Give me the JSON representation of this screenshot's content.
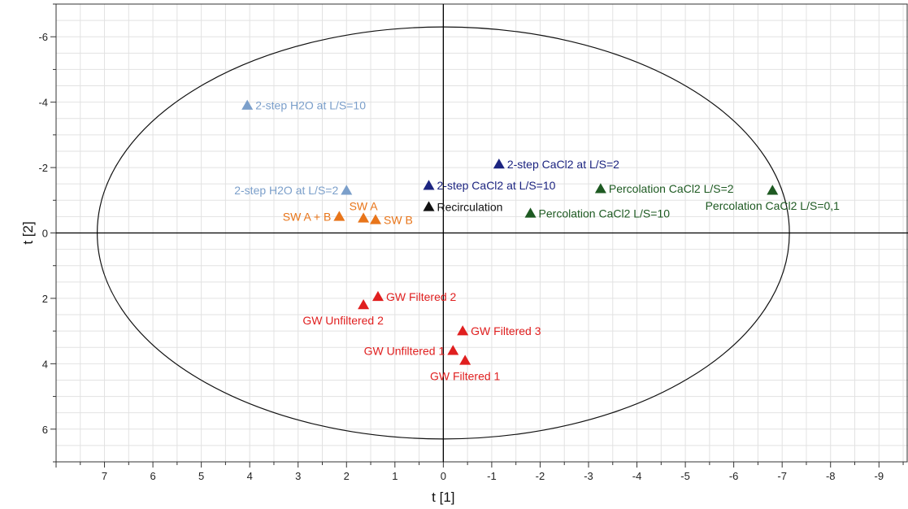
{
  "chart_data": {
    "type": "scatter",
    "xlabel": "t [1]",
    "ylabel": "t [2]",
    "x_axis_reversed": true,
    "y_axis_reversed": true,
    "xlim": [
      8.0,
      -9.6
    ],
    "ylim": [
      -7.0,
      7.0
    ],
    "x_ticks": [
      7,
      6,
      5,
      4,
      3,
      2,
      1,
      0,
      -1,
      -2,
      -3,
      -4,
      -5,
      -6,
      -7,
      -8,
      -9
    ],
    "y_ticks": [
      -6,
      -4,
      -2,
      0,
      2,
      4,
      6
    ],
    "grid": true,
    "ellipse": {
      "cx": 0,
      "cy": 0,
      "rx": 7.15,
      "ry": 6.3
    },
    "colors": {
      "light_blue": "#7b9fca",
      "dark_blue": "#1c2480",
      "black": "#111111",
      "orange": "#e8751a",
      "green": "#1e5a22",
      "red": "#e01f1f"
    },
    "points": [
      {
        "label": "2-step H2O at L/S=10",
        "x": 4.05,
        "y": -3.9,
        "color": "light_blue",
        "anchor": "right"
      },
      {
        "label": "2-step H2O at L/S=2",
        "x": 2.0,
        "y": -1.3,
        "color": "light_blue",
        "anchor": "left"
      },
      {
        "label": "2-step CaCl2 at L/S=2",
        "x": -1.15,
        "y": -2.1,
        "color": "dark_blue",
        "anchor": "right"
      },
      {
        "label": "2-step CaCl2 at L/S=10",
        "x": 0.3,
        "y": -1.45,
        "color": "dark_blue",
        "anchor": "right"
      },
      {
        "label": "Recirculation",
        "x": 0.3,
        "y": -0.8,
        "color": "black",
        "anchor": "right"
      },
      {
        "label": "SW A",
        "x": 1.65,
        "y": -0.45,
        "color": "orange",
        "anchor": "above"
      },
      {
        "label": "SW A + B",
        "x": 2.15,
        "y": -0.5,
        "color": "orange",
        "anchor": "left"
      },
      {
        "label": "SW B",
        "x": 1.4,
        "y": -0.4,
        "color": "orange",
        "anchor": "right"
      },
      {
        "label": "Percolation CaCl2 L/S=2",
        "x": -3.25,
        "y": -1.35,
        "color": "green",
        "anchor": "right"
      },
      {
        "label": "Percolation CaCl2 L/S=10",
        "x": -1.8,
        "y": -0.6,
        "color": "green",
        "anchor": "right"
      },
      {
        "label": "Percolation CaCl2 L/S=0,1",
        "x": -6.8,
        "y": -1.3,
        "color": "green",
        "anchor": "below"
      },
      {
        "label": "GW Filtered 2",
        "x": 1.35,
        "y": 1.95,
        "color": "red",
        "anchor": "right"
      },
      {
        "label": "GW Unfiltered 2",
        "x": 1.65,
        "y": 2.2,
        "color": "red",
        "anchor": "below-left"
      },
      {
        "label": "GW Filtered 3",
        "x": -0.4,
        "y": 3.0,
        "color": "red",
        "anchor": "right"
      },
      {
        "label": "GW Unfiltered 1",
        "x": -0.2,
        "y": 3.6,
        "color": "red",
        "anchor": "left"
      },
      {
        "label": "GW Filtered 1",
        "x": -0.45,
        "y": 3.9,
        "color": "red",
        "anchor": "below"
      }
    ]
  }
}
